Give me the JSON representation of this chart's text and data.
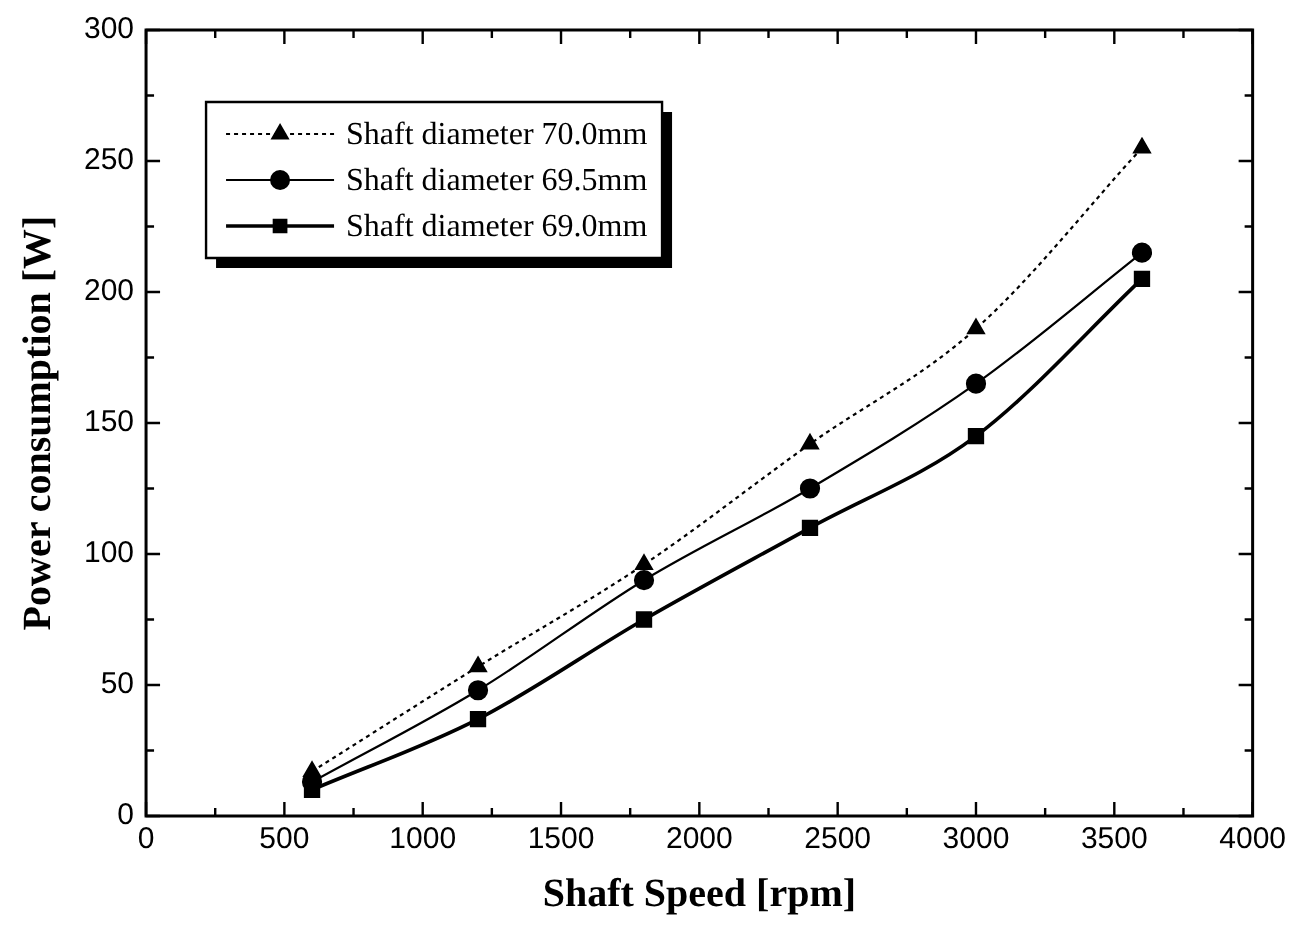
{
  "chart_data": {
    "type": "line",
    "xlabel": "Shaft Speed [rpm]",
    "ylabel": "Power consumption [W]",
    "x": [
      600,
      1200,
      1800,
      2400,
      3000,
      3600
    ],
    "series": [
      {
        "name": "Shaft diameter 70.0mm",
        "color": "#000000",
        "values": [
          17,
          57,
          96,
          142,
          186,
          255
        ],
        "marker": "triangle",
        "line_style": "dotted"
      },
      {
        "name": "Shaft diameter 69.5mm",
        "color": "#000000",
        "values": [
          13,
          48,
          90,
          125,
          165,
          215
        ],
        "marker": "circle",
        "line_style": "solid"
      },
      {
        "name": "Shaft diameter 69.0mm",
        "color": "#000000",
        "values": [
          10,
          37,
          75,
          110,
          145,
          205
        ],
        "marker": "square",
        "line_style": "solid"
      }
    ],
    "xlim": [
      0,
      4000
    ],
    "xticks": [
      0,
      500,
      1000,
      1500,
      2000,
      2500,
      3000,
      3500,
      4000
    ],
    "ylim": [
      0,
      300
    ],
    "yticks": [
      0,
      50,
      100,
      150,
      200,
      250,
      300
    ],
    "grid": false,
    "legend": "top left"
  }
}
